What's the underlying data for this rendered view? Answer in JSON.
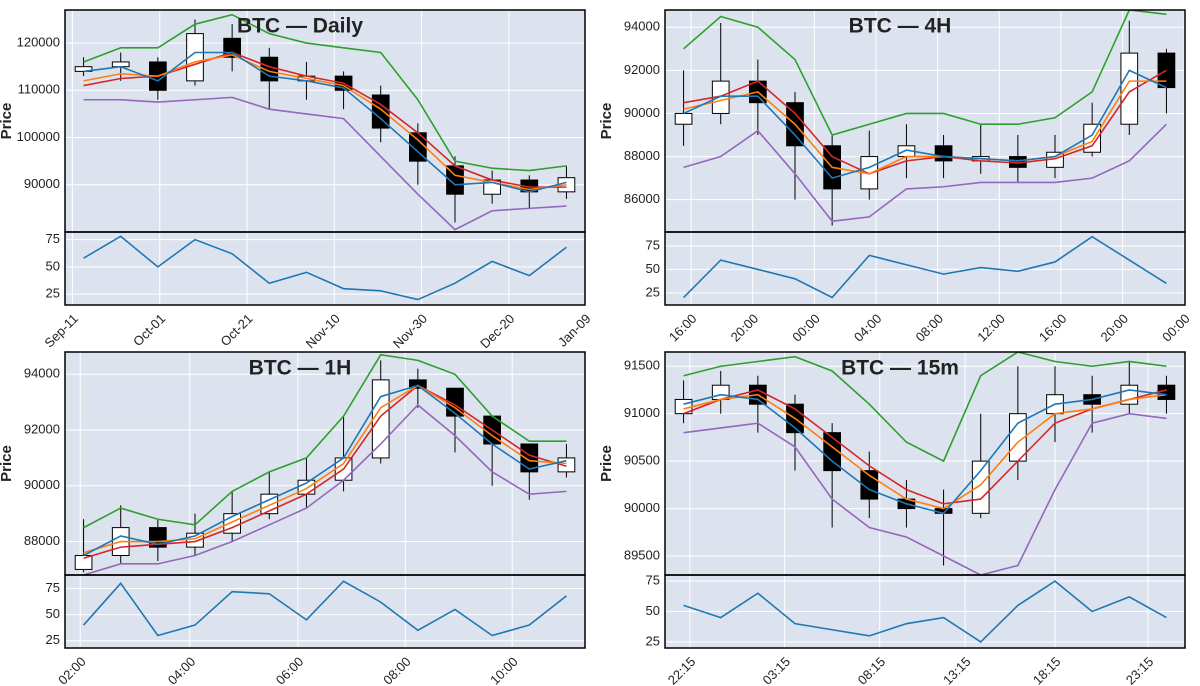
{
  "chart_data": [
    {
      "type": "candlestick",
      "title": "BTC — Daily",
      "ylabel": "Price",
      "grid": true,
      "xlim": [
        -0.5,
        13.5
      ],
      "xticks": [
        {
          "value": -0.3,
          "label": "Sep-11"
        },
        {
          "value": 2.05,
          "label": "Oct-01"
        },
        {
          "value": 4.4,
          "label": "Oct-21"
        },
        {
          "value": 6.75,
          "label": "Nov-10"
        },
        {
          "value": 9.1,
          "label": "Nov-30"
        },
        {
          "value": 11.45,
          "label": "Dec-20"
        },
        {
          "value": 13.5,
          "label": "Jan-09"
        }
      ],
      "ylim": [
        80000,
        127000
      ],
      "yticks": [
        90000,
        100000,
        110000,
        120000
      ],
      "up_color": "#ffffff",
      "down_color": "#000000",
      "open": [
        114000,
        115000,
        116000,
        112000,
        121000,
        117000,
        112000,
        113000,
        109000,
        101000,
        94000,
        88000,
        91000,
        88500
      ],
      "high": [
        117000,
        118000,
        117000,
        125000,
        124000,
        119000,
        116000,
        114000,
        111000,
        103000,
        96000,
        93000,
        92000,
        94000
      ],
      "low": [
        113000,
        112000,
        108000,
        111000,
        114000,
        106000,
        108000,
        106000,
        99000,
        90000,
        82000,
        86000,
        85000,
        87000
      ],
      "close": [
        115000,
        116000,
        110000,
        122000,
        117000,
        112000,
        113000,
        110000,
        102000,
        95000,
        88000,
        91000,
        88500,
        91500
      ],
      "series": [
        {
          "color": "#2ca02c",
          "values": [
            116000,
            119000,
            119000,
            124000,
            126000,
            122000,
            120000,
            119000,
            118000,
            108000,
            95000,
            93500,
            93000,
            94000
          ]
        },
        {
          "color": "#9467bd",
          "values": [
            108000,
            108000,
            107500,
            108000,
            108500,
            106000,
            105000,
            104000,
            96000,
            88000,
            80500,
            84500,
            85000,
            85500
          ]
        },
        {
          "color": "#d62728",
          "values": [
            111000,
            112500,
            113000,
            115500,
            118000,
            115000,
            113000,
            111500,
            107000,
            101000,
            94000,
            91000,
            89500,
            89500
          ]
        },
        {
          "color": "#ff7f0e",
          "values": [
            112000,
            113500,
            113000,
            116000,
            117500,
            114000,
            112500,
            111000,
            106000,
            99500,
            92000,
            90500,
            89000,
            90000
          ]
        },
        {
          "color": "#1f77b4",
          "values": [
            114000,
            115000,
            112000,
            118000,
            118000,
            113000,
            112000,
            110500,
            104000,
            97000,
            90000,
            90500,
            88500,
            90500
          ]
        }
      ],
      "rsi": {
        "ylim": [
          15,
          82
        ],
        "yticks": [
          25,
          50,
          75
        ],
        "color": "#1f77b4",
        "values": [
          58,
          78,
          50,
          75,
          62,
          35,
          45,
          30,
          28,
          20,
          35,
          55,
          42,
          68
        ]
      }
    },
    {
      "type": "candlestick",
      "title": "BTC — 4H",
      "ylabel": "Price",
      "grid": true,
      "xlim": [
        -0.5,
        13.5
      ],
      "xticks": [
        {
          "value": 0.2,
          "label": "16:00"
        },
        {
          "value": 1.86,
          "label": "20:00"
        },
        {
          "value": 3.52,
          "label": "00:00"
        },
        {
          "value": 5.18,
          "label": "04:00"
        },
        {
          "value": 6.84,
          "label": "08:00"
        },
        {
          "value": 8.5,
          "label": "12:00"
        },
        {
          "value": 10.16,
          "label": "16:00"
        },
        {
          "value": 11.82,
          "label": "20:00"
        },
        {
          "value": 13.48,
          "label": "00:00"
        }
      ],
      "ylim": [
        84500,
        94800
      ],
      "yticks": [
        86000,
        88000,
        90000,
        92000,
        94000
      ],
      "up_color": "#ffffff",
      "down_color": "#000000",
      "open": [
        89500,
        90000,
        91500,
        90500,
        88500,
        86500,
        88000,
        88500,
        87800,
        88000,
        87500,
        88200,
        89500,
        92800
      ],
      "high": [
        92000,
        94200,
        92500,
        91000,
        89000,
        89200,
        89500,
        89000,
        89500,
        89000,
        89000,
        90500,
        94300,
        93000
      ],
      "low": [
        88500,
        89500,
        89000,
        86000,
        84800,
        86000,
        87000,
        87000,
        87200,
        86800,
        87000,
        88000,
        89000,
        90000
      ],
      "close": [
        90000,
        91500,
        90500,
        88500,
        86500,
        88000,
        88500,
        87800,
        88000,
        87500,
        88200,
        89500,
        92800,
        91200
      ],
      "series": [
        {
          "color": "#2ca02c",
          "values": [
            93000,
            94500,
            94000,
            92500,
            89000,
            89500,
            90000,
            90000,
            89500,
            89500,
            89800,
            91000,
            94800,
            94600
          ]
        },
        {
          "color": "#9467bd",
          "values": [
            87500,
            88000,
            89200,
            87200,
            85000,
            85200,
            86500,
            86600,
            86800,
            86800,
            86800,
            87000,
            87800,
            89500
          ]
        },
        {
          "color": "#d62728",
          "values": [
            90500,
            90800,
            91500,
            90000,
            88000,
            87200,
            87800,
            88000,
            87800,
            87700,
            87900,
            88500,
            91000,
            92000
          ]
        },
        {
          "color": "#ff7f0e",
          "values": [
            90200,
            90600,
            91000,
            89500,
            87500,
            87200,
            88000,
            88000,
            87900,
            87800,
            88000,
            88700,
            91500,
            91500
          ]
        },
        {
          "color": "#1f77b4",
          "values": [
            90000,
            90800,
            90800,
            89000,
            87000,
            87500,
            88300,
            88000,
            87900,
            87800,
            88000,
            89000,
            92000,
            91200
          ]
        }
      ],
      "rsi": {
        "ylim": [
          12,
          90
        ],
        "yticks": [
          25,
          50,
          75
        ],
        "color": "#1f77b4",
        "values": [
          20,
          60,
          50,
          40,
          20,
          65,
          55,
          45,
          52,
          48,
          58,
          85,
          60,
          35
        ]
      }
    },
    {
      "type": "candlestick",
      "title": "BTC — 1H",
      "ylabel": "Price",
      "grid": true,
      "xlim": [
        -0.5,
        13.5
      ],
      "xticks": [
        {
          "value": -0.09,
          "label": "02:00"
        },
        {
          "value": 2.86,
          "label": "04:00"
        },
        {
          "value": 5.77,
          "label": "06:00"
        },
        {
          "value": 8.66,
          "label": "08:00"
        },
        {
          "value": 11.54,
          "label": "10:00"
        }
      ],
      "ylim": [
        86800,
        94800
      ],
      "yticks": [
        88000,
        90000,
        92000,
        94000
      ],
      "up_color": "#ffffff",
      "down_color": "#000000",
      "open": [
        87000,
        87500,
        88500,
        87800,
        88300,
        89000,
        89700,
        90200,
        91000,
        93800,
        93500,
        92500,
        91500,
        90500
      ],
      "high": [
        88800,
        89300,
        88800,
        89000,
        89800,
        90500,
        91000,
        92500,
        94500,
        94200,
        93500,
        92500,
        91500,
        91500
      ],
      "low": [
        86900,
        87200,
        87300,
        87500,
        88000,
        88800,
        89200,
        89800,
        90800,
        92800,
        91200,
        90000,
        89500,
        90300
      ],
      "close": [
        87500,
        88500,
        87800,
        88300,
        89000,
        89700,
        90200,
        91000,
        93800,
        93500,
        92500,
        91500,
        90500,
        91000
      ],
      "series": [
        {
          "color": "#2ca02c",
          "values": [
            88500,
            89200,
            88800,
            88600,
            89800,
            90500,
            91000,
            92500,
            94700,
            94500,
            94000,
            92500,
            91600,
            91600
          ]
        },
        {
          "color": "#9467bd",
          "values": [
            86800,
            87200,
            87200,
            87500,
            88000,
            88600,
            89200,
            90200,
            91500,
            92900,
            91800,
            90500,
            89700,
            89800
          ]
        },
        {
          "color": "#d62728",
          "values": [
            87400,
            87800,
            87900,
            88000,
            88500,
            89100,
            89700,
            90600,
            92500,
            93600,
            92900,
            92000,
            91100,
            90700
          ]
        },
        {
          "color": "#ff7f0e",
          "values": [
            87600,
            88000,
            88000,
            88100,
            88700,
            89300,
            89900,
            90800,
            92800,
            93600,
            92800,
            91800,
            90900,
            90800
          ]
        },
        {
          "color": "#1f77b4",
          "values": [
            87500,
            88200,
            87900,
            88200,
            88900,
            89500,
            90100,
            91000,
            93200,
            93600,
            92600,
            91500,
            90600,
            90900
          ]
        }
      ],
      "rsi": {
        "ylim": [
          18,
          88
        ],
        "yticks": [
          25,
          50,
          75
        ],
        "color": "#1f77b4",
        "values": [
          40,
          80,
          30,
          40,
          72,
          70,
          45,
          82,
          62,
          35,
          55,
          30,
          40,
          68
        ]
      }
    },
    {
      "type": "candlestick",
      "title": "BTC — 15m",
      "ylabel": "Price",
      "grid": true,
      "xlim": [
        -0.5,
        13.5
      ],
      "xticks": [
        {
          "value": 0.17,
          "label": "22:15"
        },
        {
          "value": 2.72,
          "label": "03:15"
        },
        {
          "value": 5.28,
          "label": "08:15"
        },
        {
          "value": 7.58,
          "label": "13:15"
        },
        {
          "value": 10.0,
          "label": "18:15"
        },
        {
          "value": 12.5,
          "label": "23:15"
        }
      ],
      "ylim": [
        89300,
        91650
      ],
      "yticks": [
        89500,
        90000,
        90500,
        91000,
        91500
      ],
      "up_color": "#ffffff",
      "down_color": "#000000",
      "open": [
        91000,
        91150,
        91300,
        91100,
        90800,
        90400,
        90100,
        90000,
        89950,
        90500,
        91000,
        91200,
        91100,
        91300
      ],
      "high": [
        91350,
        91450,
        91400,
        91200,
        90900,
        90600,
        90300,
        90200,
        91000,
        91500,
        91500,
        91400,
        91550,
        91400
      ],
      "low": [
        90900,
        91000,
        90800,
        90400,
        89800,
        89900,
        89800,
        89400,
        89900,
        90300,
        90700,
        90800,
        91000,
        91000
      ],
      "close": [
        91150,
        91300,
        91100,
        90800,
        90400,
        90100,
        90000,
        89950,
        90500,
        91000,
        91200,
        91100,
        91300,
        91150
      ],
      "series": [
        {
          "color": "#2ca02c",
          "values": [
            91400,
            91500,
            91550,
            91600,
            91450,
            91100,
            90700,
            90500,
            91400,
            91650,
            91550,
            91500,
            91550,
            91500
          ]
        },
        {
          "color": "#9467bd",
          "values": [
            90800,
            90850,
            90900,
            90650,
            90100,
            89800,
            89700,
            89500,
            89300,
            89400,
            90200,
            90900,
            91000,
            90950
          ]
        },
        {
          "color": "#d62728",
          "values": [
            91000,
            91150,
            91250,
            91050,
            90750,
            90450,
            90200,
            90050,
            90100,
            90500,
            90900,
            91050,
            91150,
            91250
          ]
        },
        {
          "color": "#ff7f0e",
          "values": [
            91050,
            91150,
            91200,
            90950,
            90650,
            90350,
            90100,
            90000,
            90250,
            90700,
            91000,
            91050,
            91150,
            91200
          ]
        },
        {
          "color": "#1f77b4",
          "values": [
            91100,
            91200,
            91150,
            90850,
            90500,
            90200,
            90050,
            89950,
            90400,
            90900,
            91100,
            91150,
            91250,
            91200
          ]
        }
      ],
      "rsi": {
        "ylim": [
          20,
          80
        ],
        "yticks": [
          25,
          50,
          75
        ],
        "color": "#1f77b4",
        "values": [
          55,
          45,
          65,
          40,
          35,
          30,
          40,
          45,
          25,
          55,
          75,
          50,
          62,
          45
        ]
      }
    }
  ]
}
